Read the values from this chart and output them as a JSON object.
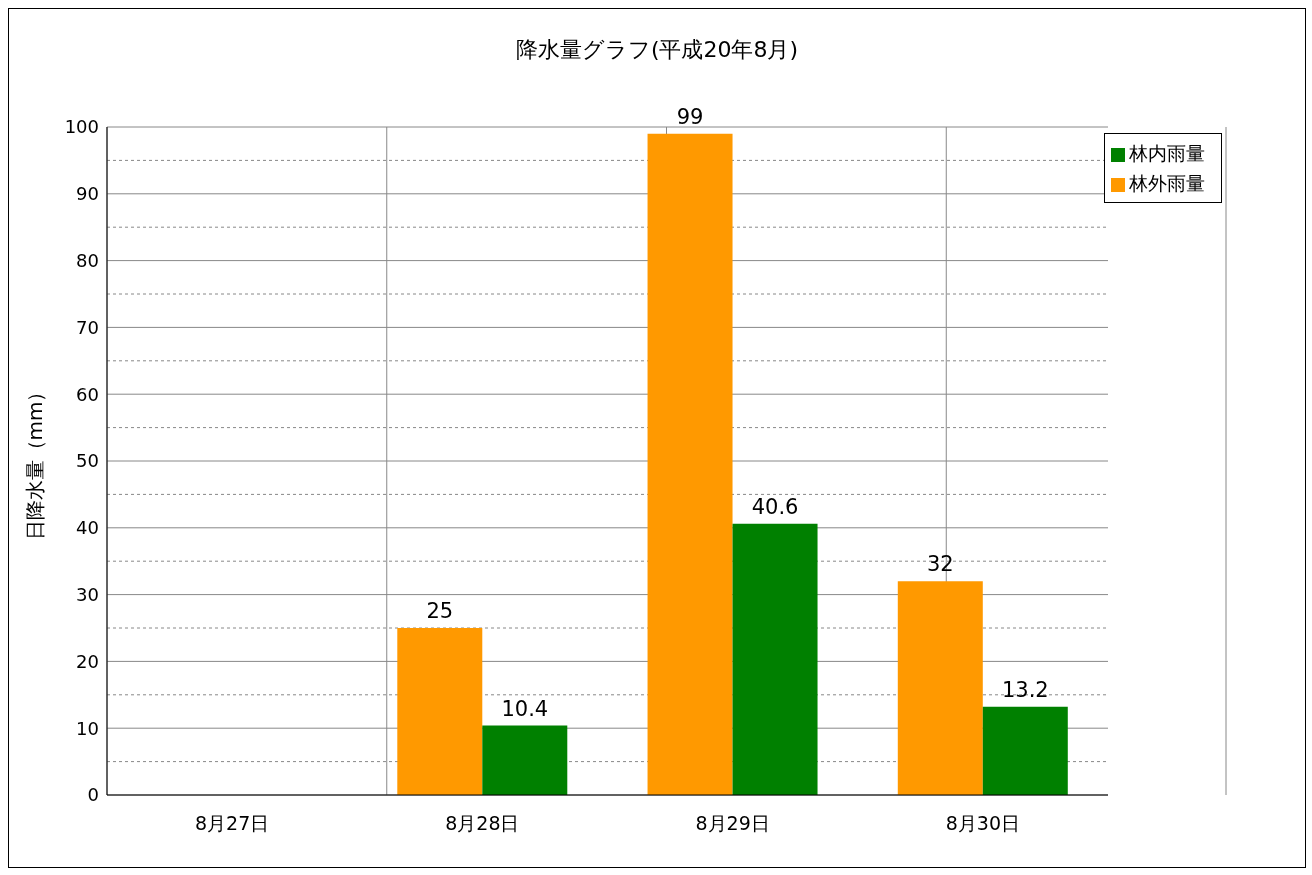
{
  "chart_data": {
    "type": "bar",
    "title": "降水量グラフ(平成20年8月)",
    "ylabel": "日降水量（mm）",
    "categories": [
      "8月27日",
      "8月28日",
      "8月29日",
      "8月30日"
    ],
    "series": [
      {
        "name": "林外雨量",
        "color": "#ff9900",
        "values": [
          null,
          25,
          99,
          32
        ]
      },
      {
        "name": "林内雨量",
        "color": "#008000",
        "values": [
          null,
          10.4,
          40.6,
          13.2
        ]
      }
    ],
    "ylim": [
      0,
      100
    ],
    "yticks": [
      0,
      {
        "value": 5,
        "label": null
      },
      10,
      {
        "value": 15,
        "label": null
      },
      20,
      {
        "value": 25,
        "label": null
      },
      30,
      {
        "value": 35,
        "label": null
      },
      40,
      {
        "value": 45,
        "label": null
      },
      50,
      {
        "value": 55,
        "label": null
      },
      60,
      {
        "value": 65,
        "label": null
      },
      70,
      {
        "value": 75,
        "label": null
      },
      80,
      {
        "value": 85,
        "label": null
      },
      90,
      {
        "value": 95,
        "label": null
      },
      100
    ],
    "grid": true,
    "legend": "top right",
    "data_labels": true
  }
}
